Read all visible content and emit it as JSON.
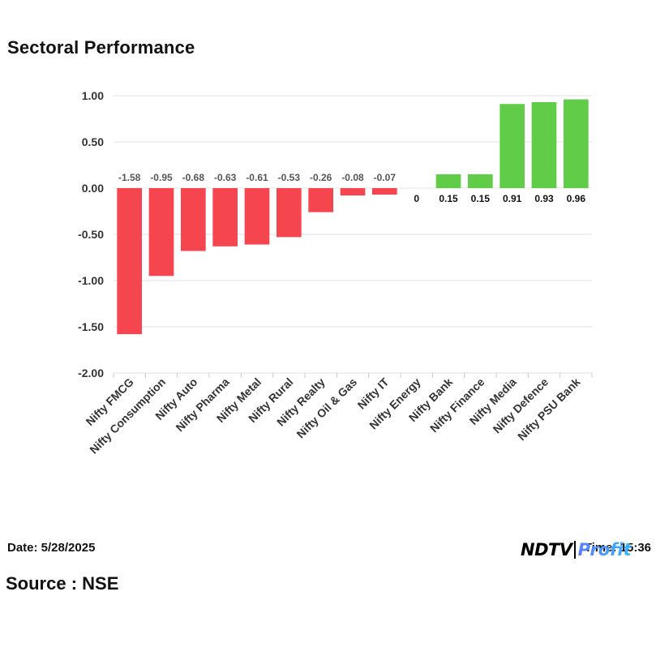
{
  "header": {
    "title": "Sectoral Performance"
  },
  "footer": {
    "date": "Date: 5/28/2025",
    "time_partial": "Time: 15:36",
    "source": "Source : NSE",
    "logo_ndtv": "NDTV",
    "logo_profit": "Profit"
  },
  "colors": {
    "negative": "#f5454f",
    "positive": "#60cc47",
    "grid": "#e2e2e2",
    "axis_text": "#333333",
    "label_negative": "#555555",
    "label_positive": "#111111"
  },
  "chart_data": {
    "type": "bar",
    "title": "Sectoral Performance",
    "xlabel": "",
    "ylabel": "",
    "ylim": [
      -2.0,
      1.0
    ],
    "yticks": [
      1.0,
      0.5,
      0.0,
      -0.5,
      -1.0,
      -1.5,
      -2.0
    ],
    "ytick_labels": [
      "1.00",
      "0.50",
      "0.00",
      "-0.50",
      "-1.00",
      "-1.50",
      "-2.00"
    ],
    "grid": true,
    "categories": [
      "Nifty FMCG",
      "Nifty Consumption",
      "Nifty Auto",
      "Nifty Pharma",
      "Nifty Metal",
      "Nifty Rural",
      "Nifty Realty",
      "Nifty Oil & Gas",
      "Nifty IT",
      "Nifty Energy",
      "Nifty Bank",
      "Nifty Finance",
      "Nifty Media",
      "Nifty Defence",
      "Nifty PSU Bank"
    ],
    "values": [
      -1.58,
      -0.95,
      -0.68,
      -0.63,
      -0.61,
      -0.53,
      -0.26,
      -0.08,
      -0.07,
      0,
      0.15,
      0.15,
      0.91,
      0.93,
      0.96
    ],
    "value_labels": [
      "-1.58",
      "-0.95",
      "-0.68",
      "-0.63",
      "-0.61",
      "-0.53",
      "-0.26",
      "-0.08",
      "-0.07",
      "0",
      "0.15",
      "0.15",
      "0.91",
      "0.93",
      "0.96"
    ]
  }
}
